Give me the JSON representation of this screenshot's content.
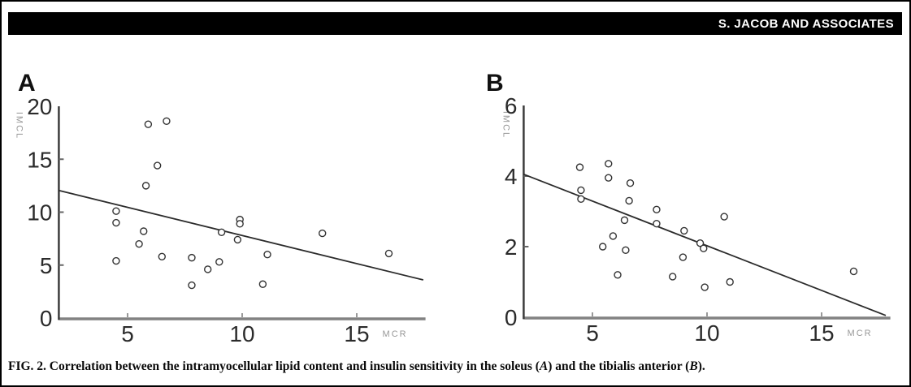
{
  "header": {
    "running_title": "S. JACOB AND ASSOCIATES"
  },
  "caption": {
    "pre": "FIG. 2. Correlation between the intramyocellular lipid content and insulin sensitivity in the soleus (",
    "panel_a": "A",
    "mid": ") and the tibialis anterior (",
    "panel_b": "B",
    "post": ")."
  },
  "colors": {
    "header_bg": "#000000",
    "header_text": "#ffffff",
    "y_axis": "#3c3c3c",
    "x_axis": "#828282",
    "tick_label": "#2b2b2b",
    "muted_label": "#989898",
    "marker_stroke": "#333333",
    "trend_line": "#2b2b2b"
  },
  "chart_data": [
    {
      "type": "scatter",
      "panel_label": "A",
      "ylabel": "IMCL",
      "xlabel": "MCR",
      "xlim": [
        2,
        18
      ],
      "ylim": [
        0,
        20
      ],
      "x_ticks": [
        5,
        10,
        15
      ],
      "y_ticks": [
        0,
        5,
        10,
        15,
        20
      ],
      "marker": "open-circle",
      "grid": false,
      "points": [
        [
          5.9,
          18.3
        ],
        [
          6.7,
          18.6
        ],
        [
          6.3,
          14.4
        ],
        [
          5.8,
          12.5
        ],
        [
          4.5,
          10.1
        ],
        [
          4.5,
          9.0
        ],
        [
          5.7,
          8.2
        ],
        [
          5.5,
          7.0
        ],
        [
          4.5,
          5.4
        ],
        [
          6.5,
          5.8
        ],
        [
          7.8,
          5.7
        ],
        [
          9.0,
          5.3
        ],
        [
          8.5,
          4.6
        ],
        [
          7.8,
          3.1
        ],
        [
          9.9,
          9.3
        ],
        [
          9.9,
          8.9
        ],
        [
          9.1,
          8.1
        ],
        [
          9.8,
          7.4
        ],
        [
          11.1,
          6.0
        ],
        [
          10.9,
          3.2
        ],
        [
          13.5,
          8.0
        ],
        [
          16.4,
          6.1
        ]
      ],
      "trend_line": {
        "x1": 2,
        "y1": 12.05,
        "x2": 17.9,
        "y2": 3.6
      }
    },
    {
      "type": "scatter",
      "panel_label": "B",
      "ylabel": "IMCL",
      "xlabel": "MCR",
      "xlim": [
        2,
        18
      ],
      "ylim": [
        0,
        6
      ],
      "x_ticks": [
        5,
        10,
        15
      ],
      "y_ticks": [
        0,
        2,
        4,
        6
      ],
      "marker": "open-circle",
      "grid": false,
      "points": [
        [
          4.45,
          4.25
        ],
        [
          5.7,
          4.35
        ],
        [
          5.7,
          3.95
        ],
        [
          6.65,
          3.8
        ],
        [
          4.5,
          3.6
        ],
        [
          4.5,
          3.35
        ],
        [
          6.6,
          3.3
        ],
        [
          7.8,
          3.05
        ],
        [
          6.4,
          2.75
        ],
        [
          7.8,
          2.65
        ],
        [
          9.0,
          2.45
        ],
        [
          10.75,
          2.85
        ],
        [
          5.9,
          2.3
        ],
        [
          5.45,
          2.0
        ],
        [
          6.45,
          1.9
        ],
        [
          9.7,
          2.1
        ],
        [
          9.85,
          1.95
        ],
        [
          8.95,
          1.7
        ],
        [
          6.1,
          1.2
        ],
        [
          8.5,
          1.15
        ],
        [
          9.9,
          0.85
        ],
        [
          11.0,
          1.0
        ],
        [
          16.4,
          1.3
        ]
      ],
      "trend_line": {
        "x1": 2,
        "y1": 4.05,
        "x2": 17.8,
        "y2": 0.05
      }
    }
  ]
}
